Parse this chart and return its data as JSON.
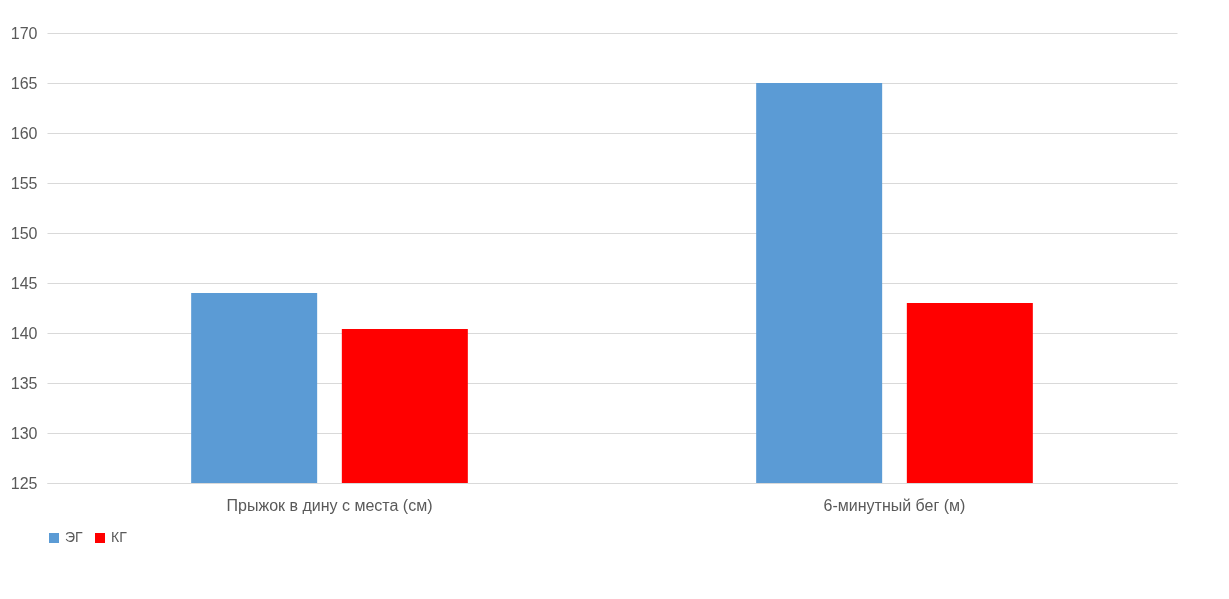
{
  "chart_data": {
    "type": "bar",
    "categories": [
      "Прыжок в дину с места (см)",
      "6-минутный бег (м)"
    ],
    "series": [
      {
        "name": "ЭГ",
        "color": "#5b9bd5",
        "values": [
          144,
          165
        ]
      },
      {
        "name": "КГ",
        "color": "#ff0000",
        "values": [
          140.4,
          143
        ]
      }
    ],
    "ylim": [
      125,
      170
    ],
    "yticks": [
      125,
      130,
      135,
      140,
      145,
      150,
      155,
      160,
      165,
      170
    ],
    "grid": "y",
    "legend": "bottom"
  }
}
